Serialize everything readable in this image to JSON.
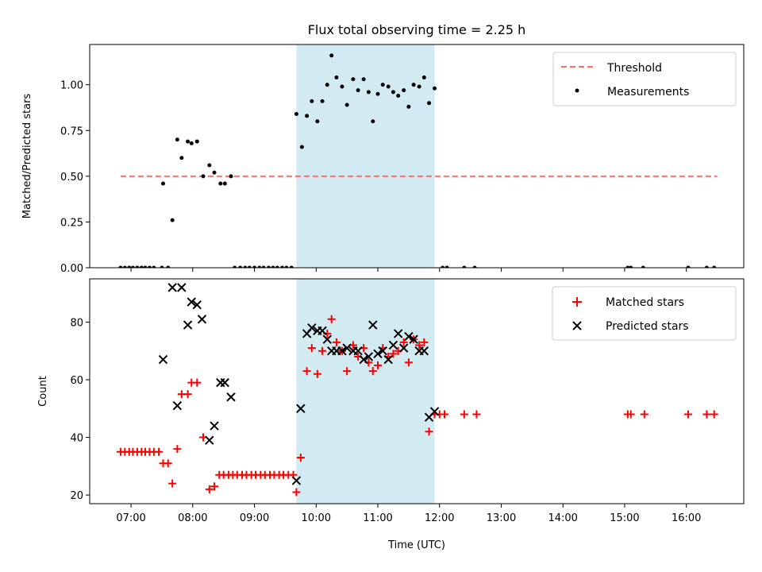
{
  "chart_data": {
    "title": "Flux total observing time = 2.25 h",
    "xlabel": "Time (UTC)",
    "x_unit": "hours (UTC)",
    "xlim": [
      6.33,
      16.93
    ],
    "xticks": [
      7,
      8,
      9,
      10,
      11,
      12,
      13,
      14,
      15,
      16
    ],
    "xtick_labels": [
      "07:00",
      "08:00",
      "09:00",
      "10:00",
      "11:00",
      "12:00",
      "13:00",
      "14:00",
      "15:00",
      "16:00"
    ],
    "shaded_span": [
      9.68,
      11.92
    ],
    "shaded_color": "#add8e6",
    "subplots": [
      {
        "type": "scatter",
        "ylabel": "Matched/Predicted stars",
        "ylim": [
          0,
          1.22
        ],
        "yticks": [
          0.0,
          0.25,
          0.5,
          0.75,
          1.0
        ],
        "ytick_labels": [
          "0.00",
          "0.25",
          "0.50",
          "0.75",
          "1.00"
        ],
        "legend": {
          "position": "top-right",
          "entries": [
            {
              "label": "Threshold",
              "marker": "dashed-line",
              "color": "#ff7070"
            },
            {
              "label": "Measurements",
              "marker": "dot",
              "color": "#000000"
            }
          ]
        },
        "threshold": {
          "value": 0.5,
          "x_range": [
            6.83,
            16.5
          ]
        },
        "series": [
          {
            "name": "Measurements",
            "marker": "dot",
            "color": "#000000",
            "points": [
              [
                6.83,
                0
              ],
              [
                6.9,
                0
              ],
              [
                6.97,
                0
              ],
              [
                7.03,
                0
              ],
              [
                7.1,
                0
              ],
              [
                7.17,
                0
              ],
              [
                7.23,
                0
              ],
              [
                7.3,
                0
              ],
              [
                7.37,
                0
              ],
              [
                7.5,
                0
              ],
              [
                7.6,
                0
              ],
              [
                7.52,
                0.46
              ],
              [
                7.67,
                0.26
              ],
              [
                7.75,
                0.7
              ],
              [
                7.82,
                0.6
              ],
              [
                7.92,
                0.69
              ],
              [
                7.98,
                0.68
              ],
              [
                8.07,
                0.69
              ],
              [
                8.17,
                0.5
              ],
              [
                8.27,
                0.56
              ],
              [
                8.35,
                0.52
              ],
              [
                8.45,
                0.46
              ],
              [
                8.52,
                0.46
              ],
              [
                8.62,
                0.5
              ],
              [
                8.68,
                0
              ],
              [
                8.77,
                0
              ],
              [
                8.85,
                0
              ],
              [
                8.92,
                0
              ],
              [
                9.0,
                0
              ],
              [
                9.08,
                0
              ],
              [
                9.15,
                0
              ],
              [
                9.23,
                0
              ],
              [
                9.3,
                0
              ],
              [
                9.37,
                0
              ],
              [
                9.45,
                0
              ],
              [
                9.52,
                0
              ],
              [
                9.6,
                0
              ],
              [
                9.68,
                0.84
              ],
              [
                9.77,
                0.66
              ],
              [
                9.85,
                0.83
              ],
              [
                9.93,
                0.91
              ],
              [
                10.02,
                0.8
              ],
              [
                10.1,
                0.91
              ],
              [
                10.18,
                1.0
              ],
              [
                10.25,
                1.16
              ],
              [
                10.33,
                1.04
              ],
              [
                10.42,
                0.99
              ],
              [
                10.5,
                0.89
              ],
              [
                10.6,
                1.03
              ],
              [
                10.68,
                0.97
              ],
              [
                10.77,
                1.03
              ],
              [
                10.85,
                0.96
              ],
              [
                10.92,
                0.8
              ],
              [
                11.0,
                0.95
              ],
              [
                11.08,
                1.0
              ],
              [
                11.17,
                0.99
              ],
              [
                11.25,
                0.96
              ],
              [
                11.33,
                0.94
              ],
              [
                11.42,
                0.97
              ],
              [
                11.5,
                0.88
              ],
              [
                11.58,
                1.0
              ],
              [
                11.67,
                0.99
              ],
              [
                11.75,
                1.04
              ],
              [
                11.83,
                0.9
              ],
              [
                11.92,
                0.98
              ],
              [
                12.05,
                0
              ],
              [
                12.12,
                0
              ],
              [
                12.4,
                0
              ],
              [
                12.57,
                0
              ],
              [
                15.05,
                0
              ],
              [
                15.1,
                0
              ],
              [
                15.3,
                0
              ],
              [
                16.03,
                0
              ],
              [
                16.33,
                0
              ],
              [
                16.45,
                0
              ]
            ]
          }
        ]
      },
      {
        "type": "scatter",
        "ylabel": "Count",
        "ylim": [
          17,
          95
        ],
        "yticks": [
          20,
          40,
          60,
          80
        ],
        "ytick_labels": [
          "20",
          "40",
          "60",
          "80"
        ],
        "legend": {
          "position": "top-right",
          "entries": [
            {
              "label": "Matched stars",
              "marker": "plus",
              "color": "#ff0000"
            },
            {
              "label": "Predicted stars",
              "marker": "x",
              "color": "#000000"
            }
          ]
        },
        "series": [
          {
            "name": "Matched stars",
            "marker": "plus",
            "color": "#ff0000",
            "points": [
              [
                6.83,
                35
              ],
              [
                6.9,
                35
              ],
              [
                6.97,
                35
              ],
              [
                7.03,
                35
              ],
              [
                7.1,
                35
              ],
              [
                7.17,
                35
              ],
              [
                7.23,
                35
              ],
              [
                7.3,
                35
              ],
              [
                7.37,
                35
              ],
              [
                7.45,
                35
              ],
              [
                7.52,
                31
              ],
              [
                7.6,
                31
              ],
              [
                7.67,
                24
              ],
              [
                7.75,
                36
              ],
              [
                7.82,
                55
              ],
              [
                7.92,
                55
              ],
              [
                7.98,
                59
              ],
              [
                8.07,
                59
              ],
              [
                8.17,
                40
              ],
              [
                8.27,
                22
              ],
              [
                8.35,
                23
              ],
              [
                8.43,
                27
              ],
              [
                8.5,
                27
              ],
              [
                8.58,
                27
              ],
              [
                8.65,
                27
              ],
              [
                8.72,
                27
              ],
              [
                8.8,
                27
              ],
              [
                8.87,
                27
              ],
              [
                8.95,
                27
              ],
              [
                9.02,
                27
              ],
              [
                9.1,
                27
              ],
              [
                9.17,
                27
              ],
              [
                9.25,
                27
              ],
              [
                9.32,
                27
              ],
              [
                9.4,
                27
              ],
              [
                9.47,
                27
              ],
              [
                9.55,
                27
              ],
              [
                9.63,
                27
              ],
              [
                9.68,
                21
              ],
              [
                9.75,
                33
              ],
              [
                9.85,
                63
              ],
              [
                9.93,
                71
              ],
              [
                10.02,
                62
              ],
              [
                10.1,
                70
              ],
              [
                10.18,
                76
              ],
              [
                10.25,
                81
              ],
              [
                10.33,
                73
              ],
              [
                10.42,
                70
              ],
              [
                10.5,
                63
              ],
              [
                10.6,
                72
              ],
              [
                10.68,
                68
              ],
              [
                10.77,
                71
              ],
              [
                10.85,
                66
              ],
              [
                10.92,
                63
              ],
              [
                11.0,
                65
              ],
              [
                11.08,
                71
              ],
              [
                11.17,
                68
              ],
              [
                11.25,
                69
              ],
              [
                11.33,
                70
              ],
              [
                11.42,
                73
              ],
              [
                11.5,
                66
              ],
              [
                11.58,
                74
              ],
              [
                11.67,
                72
              ],
              [
                11.75,
                73
              ],
              [
                11.83,
                42
              ],
              [
                11.92,
                48
              ],
              [
                12.0,
                48
              ],
              [
                12.08,
                48
              ],
              [
                12.4,
                48
              ],
              [
                12.6,
                48
              ],
              [
                15.05,
                48
              ],
              [
                15.1,
                48
              ],
              [
                15.32,
                48
              ],
              [
                16.03,
                48
              ],
              [
                16.33,
                48
              ],
              [
                16.45,
                48
              ]
            ]
          },
          {
            "name": "Predicted stars",
            "marker": "x",
            "color": "#000000",
            "points": [
              [
                7.52,
                67
              ],
              [
                7.67,
                92
              ],
              [
                7.75,
                51
              ],
              [
                7.82,
                92
              ],
              [
                7.92,
                79
              ],
              [
                7.98,
                87
              ],
              [
                8.07,
                86
              ],
              [
                8.15,
                81
              ],
              [
                8.27,
                39
              ],
              [
                8.35,
                44
              ],
              [
                8.45,
                59
              ],
              [
                8.52,
                59
              ],
              [
                8.62,
                54
              ],
              [
                9.68,
                25
              ],
              [
                9.75,
                50
              ],
              [
                9.85,
                76
              ],
              [
                9.93,
                78
              ],
              [
                10.02,
                77
              ],
              [
                10.1,
                77
              ],
              [
                10.18,
                74
              ],
              [
                10.25,
                70
              ],
              [
                10.33,
                70
              ],
              [
                10.42,
                70
              ],
              [
                10.5,
                71
              ],
              [
                10.6,
                70
              ],
              [
                10.68,
                70
              ],
              [
                10.77,
                67
              ],
              [
                10.85,
                68
              ],
              [
                10.92,
                79
              ],
              [
                11.0,
                69
              ],
              [
                11.08,
                70
              ],
              [
                11.17,
                67
              ],
              [
                11.25,
                72
              ],
              [
                11.33,
                76
              ],
              [
                11.42,
                71
              ],
              [
                11.5,
                75
              ],
              [
                11.58,
                74
              ],
              [
                11.67,
                70
              ],
              [
                11.75,
                70
              ],
              [
                11.83,
                47
              ],
              [
                11.92,
                49
              ]
            ]
          }
        ]
      }
    ]
  }
}
